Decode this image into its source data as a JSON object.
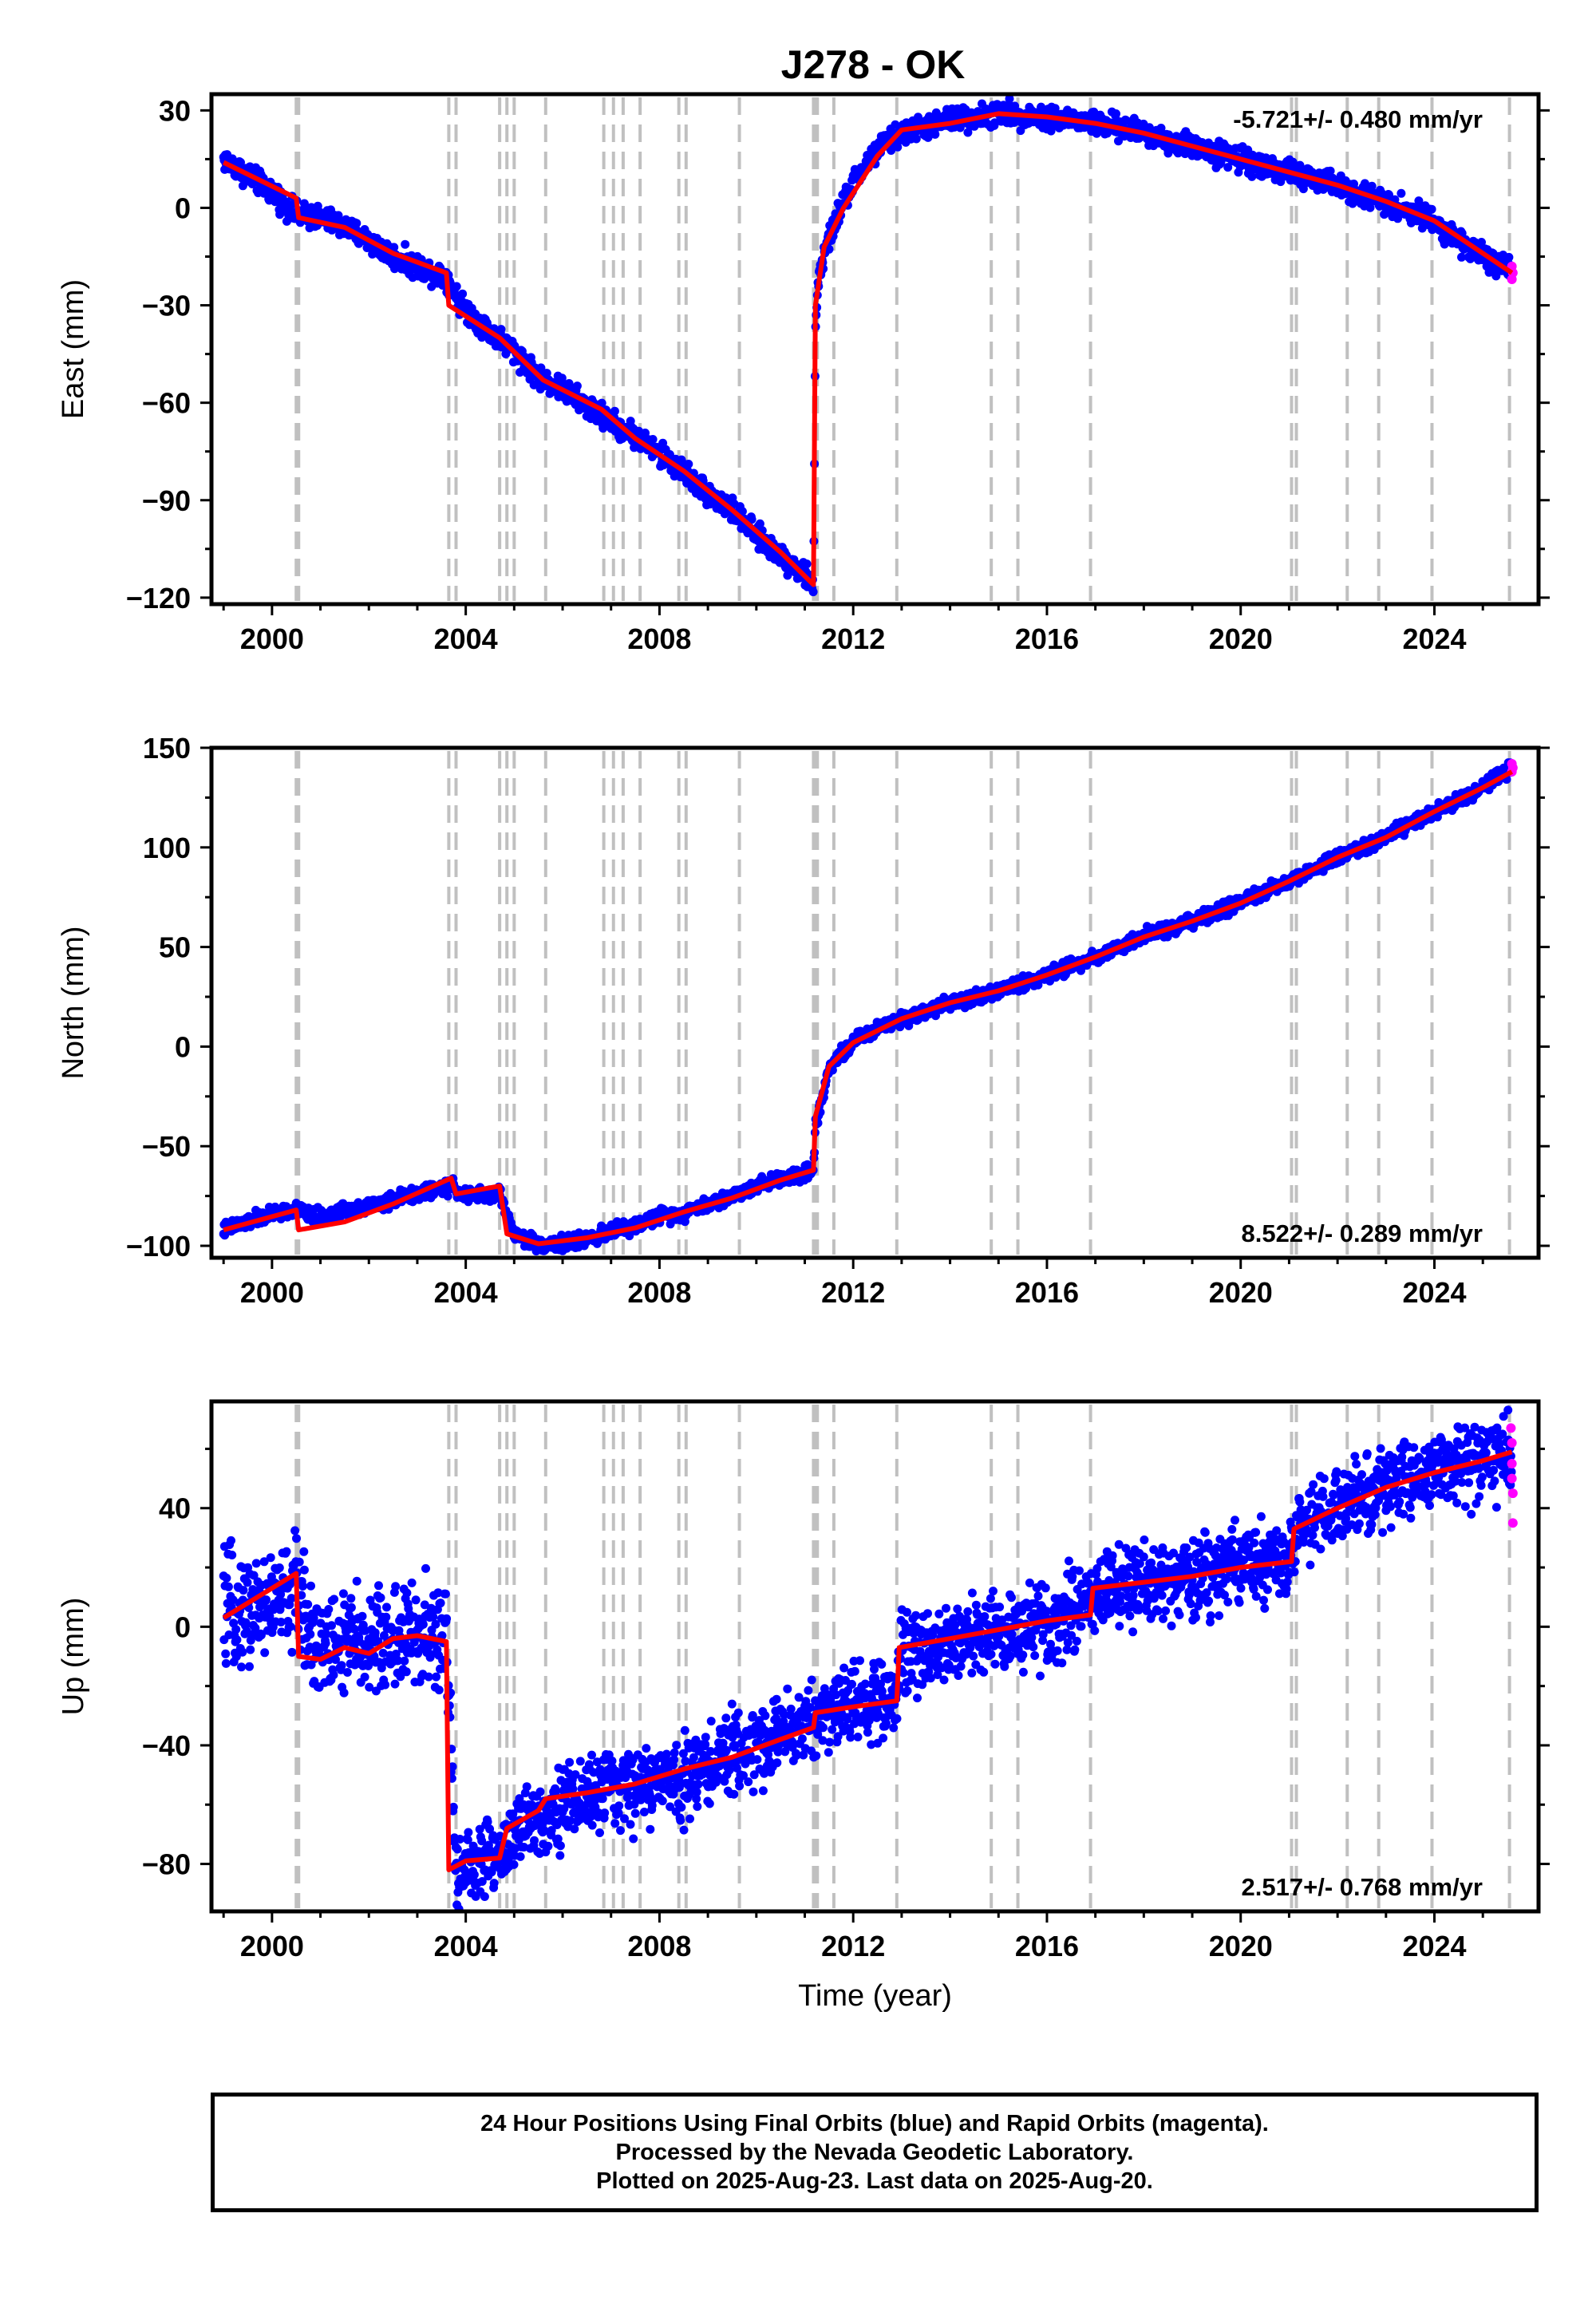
{
  "title": "J278 - OK",
  "colors": {
    "final_orbits": "#0000ff",
    "rapid_orbits": "#ff00ff",
    "model": "#ff0000",
    "event_lines": "#c0c0c0",
    "frame": "#000000"
  },
  "caption": {
    "line1": "24 Hour Positions Using Final Orbits (blue) and Rapid Orbits (magenta).",
    "line2": "Processed by the Nevada Geodetic Laboratory.",
    "line3": "Plotted on 2025-Aug-23. Last data on 2025-Aug-20."
  },
  "chart_data": [
    {
      "type": "scatter",
      "panel": "east",
      "ylabel": "East (mm)",
      "xlabel": "",
      "xlim": [
        1998.75,
        2026.15
      ],
      "ylim": [
        -122,
        35
      ],
      "xticks": [
        2000,
        2004,
        2008,
        2012,
        2016,
        2020,
        2024
      ],
      "yticks": [
        30,
        0,
        -30,
        -60,
        -90,
        -120
      ],
      "rate_label": "-5.721+/- 0.480 mm/yr",
      "rate_position": "top-right",
      "grid": false,
      "event_lines": [
        2000.5,
        2000.55,
        2003.65,
        2003.8,
        2004.7,
        2004.85,
        2005.0,
        2005.65,
        2006.85,
        2007.05,
        2007.25,
        2007.6,
        2008.4,
        2008.55,
        2009.65,
        2011.18,
        2011.22,
        2011.26,
        2011.6,
        2012.9,
        2014.85,
        2015.4,
        2016.9,
        2021.05,
        2021.15,
        2022.2,
        2022.85,
        2023.95,
        2025.55
      ],
      "series": [
        {
          "values": [
            [
              1999.0,
              15
            ],
            [
              1999.5,
              10
            ],
            [
              2000.0,
              5
            ],
            [
              2000.5,
              -2
            ],
            [
              2001.0,
              -3
            ],
            [
              2001.5,
              -6
            ],
            [
              2002.0,
              -10
            ],
            [
              2002.5,
              -15
            ],
            [
              2003.0,
              -18
            ],
            [
              2003.6,
              -21
            ],
            [
              2003.9,
              -30
            ],
            [
              2004.5,
              -38
            ],
            [
              2005.0,
              -44
            ],
            [
              2005.5,
              -52
            ],
            [
              2006.0,
              -56
            ],
            [
              2006.5,
              -61
            ],
            [
              2007.0,
              -66
            ],
            [
              2007.5,
              -70
            ],
            [
              2008.0,
              -76
            ],
            [
              2008.5,
              -81
            ],
            [
              2009.0,
              -88
            ],
            [
              2009.5,
              -93
            ],
            [
              2010.0,
              -101
            ],
            [
              2010.5,
              -107
            ],
            [
              2011.0,
              -113
            ],
            [
              2011.18,
              -117
            ],
            [
              2011.22,
              -35
            ],
            [
              2011.3,
              -20
            ],
            [
              2011.6,
              -5
            ],
            [
              2012.0,
              8
            ],
            [
              2012.5,
              18
            ],
            [
              2013.0,
              23
            ],
            [
              2013.5,
              25
            ],
            [
              2014.0,
              27
            ],
            [
              2015.0,
              29
            ],
            [
              2016.0,
              28
            ],
            [
              2017.0,
              26
            ],
            [
              2018.0,
              23
            ],
            [
              2019.0,
              19
            ],
            [
              2020.0,
              15
            ],
            [
              2021.0,
              11
            ],
            [
              2022.0,
              7
            ],
            [
              2023.0,
              2
            ],
            [
              2024.0,
              -4
            ],
            [
              2024.5,
              -10
            ],
            [
              2025.0,
              -15
            ],
            [
              2025.6,
              -20
            ]
          ]
        }
      ],
      "model": [
        [
          1999.0,
          14
        ],
        [
          2000.5,
          3
        ],
        [
          2000.55,
          -3
        ],
        [
          2001.5,
          -6
        ],
        [
          2002.5,
          -14
        ],
        [
          2003.6,
          -20
        ],
        [
          2003.65,
          -30
        ],
        [
          2004.7,
          -40
        ],
        [
          2005.6,
          -53
        ],
        [
          2006.8,
          -62
        ],
        [
          2007.5,
          -71
        ],
        [
          2008.5,
          -81
        ],
        [
          2009.5,
          -93
        ],
        [
          2010.5,
          -106
        ],
        [
          2011.18,
          -116
        ],
        [
          2011.22,
          -30
        ],
        [
          2011.4,
          -12
        ],
        [
          2011.8,
          0
        ],
        [
          2012.5,
          16
        ],
        [
          2013.0,
          24
        ],
        [
          2014.0,
          26
        ],
        [
          2015.0,
          29
        ],
        [
          2016.0,
          28
        ],
        [
          2017.0,
          26
        ],
        [
          2018.0,
          23
        ],
        [
          2019.0,
          19
        ],
        [
          2020.0,
          15
        ],
        [
          2021.0,
          11
        ],
        [
          2022.0,
          7
        ],
        [
          2023.0,
          2
        ],
        [
          2024.0,
          -4
        ],
        [
          2025.0,
          -14
        ],
        [
          2025.6,
          -20
        ]
      ]
    },
    {
      "type": "scatter",
      "panel": "north",
      "ylabel": "North (mm)",
      "xlabel": "",
      "xlim": [
        1998.75,
        2026.15
      ],
      "ylim": [
        -106,
        150
      ],
      "xticks": [
        2000,
        2004,
        2008,
        2012,
        2016,
        2020,
        2024
      ],
      "yticks": [
        150,
        100,
        50,
        0,
        -50,
        -100
      ],
      "rate_label": "8.522+/- 0.289 mm/yr",
      "rate_position": "bottom-right",
      "grid": false,
      "event_lines": [
        2000.5,
        2000.55,
        2003.65,
        2003.8,
        2004.7,
        2004.85,
        2005.0,
        2005.65,
        2006.85,
        2007.05,
        2007.25,
        2007.6,
        2008.4,
        2008.55,
        2009.65,
        2011.18,
        2011.22,
        2011.26,
        2011.6,
        2012.9,
        2014.85,
        2015.4,
        2016.9,
        2021.05,
        2021.15,
        2022.2,
        2022.85,
        2023.95,
        2025.55
      ],
      "series": [
        {
          "values": [
            [
              1999.0,
              -92
            ],
            [
              1999.5,
              -88
            ],
            [
              2000.0,
              -84
            ],
            [
              2000.5,
              -82
            ],
            [
              2001.0,
              -86
            ],
            [
              2001.5,
              -82
            ],
            [
              2002.0,
              -80
            ],
            [
              2002.5,
              -77
            ],
            [
              2003.0,
              -74
            ],
            [
              2003.7,
              -70
            ],
            [
              2004.0,
              -75
            ],
            [
              2004.7,
              -74
            ],
            [
              2005.0,
              -94
            ],
            [
              2005.5,
              -99
            ],
            [
              2006.0,
              -99
            ],
            [
              2006.5,
              -96
            ],
            [
              2007.0,
              -93
            ],
            [
              2007.5,
              -90
            ],
            [
              2008.0,
              -85
            ],
            [
              2008.5,
              -83
            ],
            [
              2009.0,
              -79
            ],
            [
              2009.5,
              -75
            ],
            [
              2010.0,
              -70
            ],
            [
              2010.5,
              -66
            ],
            [
              2011.18,
              -62
            ],
            [
              2011.22,
              -40
            ],
            [
              2011.5,
              -10
            ],
            [
              2012.0,
              2
            ],
            [
              2012.5,
              10
            ],
            [
              2013.0,
              14
            ],
            [
              2014.0,
              22
            ],
            [
              2015.0,
              28
            ],
            [
              2016.0,
              36
            ],
            [
              2017.0,
              45
            ],
            [
              2018.0,
              55
            ],
            [
              2019.0,
              63
            ],
            [
              2020.0,
              72
            ],
            [
              2021.0,
              83
            ],
            [
              2022.0,
              95
            ],
            [
              2023.0,
              105
            ],
            [
              2024.0,
              118
            ],
            [
              2025.0,
              130
            ],
            [
              2025.6,
              140
            ]
          ]
        }
      ],
      "model": [
        [
          1999.0,
          -92
        ],
        [
          2000.5,
          -82
        ],
        [
          2000.55,
          -92
        ],
        [
          2001.5,
          -88
        ],
        [
          2002.5,
          -79
        ],
        [
          2003.7,
          -66
        ],
        [
          2003.8,
          -74
        ],
        [
          2004.7,
          -70
        ],
        [
          2004.85,
          -94
        ],
        [
          2005.5,
          -99
        ],
        [
          2006.5,
          -96
        ],
        [
          2007.5,
          -91
        ],
        [
          2008.5,
          -83
        ],
        [
          2009.5,
          -76
        ],
        [
          2010.5,
          -67
        ],
        [
          2011.18,
          -62
        ],
        [
          2011.22,
          -35
        ],
        [
          2011.5,
          -10
        ],
        [
          2012.0,
          2
        ],
        [
          2013.0,
          14
        ],
        [
          2014.0,
          22
        ],
        [
          2015.0,
          28
        ],
        [
          2016.0,
          36
        ],
        [
          2017.0,
          45
        ],
        [
          2018.0,
          55
        ],
        [
          2019.0,
          63
        ],
        [
          2020.0,
          72
        ],
        [
          2021.0,
          83
        ],
        [
          2022.0,
          95
        ],
        [
          2023.0,
          105
        ],
        [
          2024.0,
          118
        ],
        [
          2025.0,
          130
        ],
        [
          2025.6,
          138
        ]
      ]
    },
    {
      "type": "scatter",
      "panel": "up",
      "ylabel": "Up (mm)",
      "xlabel": "Time (year)",
      "xlim": [
        1998.75,
        2026.15
      ],
      "ylim": [
        -96,
        76
      ],
      "xticks": [
        2000,
        2004,
        2008,
        2012,
        2016,
        2020,
        2024
      ],
      "yticks": [
        40,
        0,
        -40,
        -80
      ],
      "rate_label": "2.517+/- 0.768 mm/yr",
      "rate_position": "bottom-right",
      "grid": false,
      "event_lines": [
        2000.5,
        2000.55,
        2003.65,
        2003.8,
        2004.7,
        2004.85,
        2005.0,
        2005.65,
        2006.85,
        2007.05,
        2007.25,
        2007.6,
        2008.4,
        2008.55,
        2009.65,
        2011.18,
        2011.22,
        2011.26,
        2011.6,
        2012.9,
        2014.85,
        2015.4,
        2016.9,
        2021.05,
        2021.15,
        2022.2,
        2022.85,
        2023.95,
        2025.55
      ],
      "series": [
        {
          "values": [
            [
              1999.0,
              5
            ],
            [
              1999.5,
              6
            ],
            [
              2000.0,
              8
            ],
            [
              2000.5,
              12
            ],
            [
              2001.0,
              -8
            ],
            [
              2001.5,
              -6
            ],
            [
              2002.0,
              -5
            ],
            [
              2002.5,
              -4
            ],
            [
              2003.0,
              -3
            ],
            [
              2003.6,
              -5
            ],
            [
              2003.8,
              -82
            ],
            [
              2004.2,
              -80
            ],
            [
              2004.7,
              -77
            ],
            [
              2005.0,
              -70
            ],
            [
              2005.5,
              -64
            ],
            [
              2006.0,
              -60
            ],
            [
              2006.5,
              -57
            ],
            [
              2007.0,
              -55
            ],
            [
              2007.5,
              -54
            ],
            [
              2008.0,
              -52
            ],
            [
              2008.5,
              -50
            ],
            [
              2009.0,
              -47
            ],
            [
              2009.5,
              -43
            ],
            [
              2010.0,
              -40
            ],
            [
              2010.5,
              -36
            ],
            [
              2011.0,
              -33
            ],
            [
              2011.5,
              -28
            ],
            [
              2012.0,
              -26
            ],
            [
              2012.9,
              -24
            ],
            [
              2013.0,
              -8
            ],
            [
              2014.0,
              -5
            ],
            [
              2015.0,
              -2
            ],
            [
              2016.0,
              0
            ],
            [
              2017.0,
              12
            ],
            [
              2018.0,
              13
            ],
            [
              2019.0,
              16
            ],
            [
              2020.0,
              20
            ],
            [
              2021.0,
              22
            ],
            [
              2021.2,
              34
            ],
            [
              2022.0,
              40
            ],
            [
              2023.0,
              48
            ],
            [
              2024.0,
              53
            ],
            [
              2025.0,
              57
            ],
            [
              2025.6,
              58
            ]
          ]
        }
      ],
      "rapid": [
        [
          2025.58,
          67
        ],
        [
          2025.6,
          62
        ],
        [
          2025.6,
          55
        ],
        [
          2025.6,
          50
        ],
        [
          2025.62,
          45
        ],
        [
          2025.62,
          35
        ]
      ],
      "model": [
        [
          1999.0,
          3
        ],
        [
          2000.5,
          18
        ],
        [
          2000.55,
          -10
        ],
        [
          2001.0,
          -11
        ],
        [
          2001.5,
          -7
        ],
        [
          2002.0,
          -9
        ],
        [
          2002.5,
          -4
        ],
        [
          2003.0,
          -3
        ],
        [
          2003.6,
          -5
        ],
        [
          2003.65,
          -82
        ],
        [
          2004.0,
          -79
        ],
        [
          2004.7,
          -78
        ],
        [
          2004.85,
          -68
        ],
        [
          2005.5,
          -62
        ],
        [
          2005.65,
          -58
        ],
        [
          2006.5,
          -56
        ],
        [
          2007.5,
          -53
        ],
        [
          2008.5,
          -48
        ],
        [
          2009.5,
          -44
        ],
        [
          2010.5,
          -38
        ],
        [
          2011.18,
          -34
        ],
        [
          2011.22,
          -29
        ],
        [
          2012.0,
          -27
        ],
        [
          2012.9,
          -25
        ],
        [
          2012.95,
          -7
        ],
        [
          2014.0,
          -4
        ],
        [
          2015.0,
          -1
        ],
        [
          2016.0,
          2
        ],
        [
          2016.9,
          4
        ],
        [
          2016.95,
          13
        ],
        [
          2018.0,
          15
        ],
        [
          2019.0,
          17
        ],
        [
          2020.0,
          20
        ],
        [
          2021.05,
          22
        ],
        [
          2021.1,
          33
        ],
        [
          2022.0,
          40
        ],
        [
          2023.0,
          47
        ],
        [
          2024.0,
          52
        ],
        [
          2025.0,
          56
        ],
        [
          2025.6,
          59
        ]
      ]
    }
  ]
}
